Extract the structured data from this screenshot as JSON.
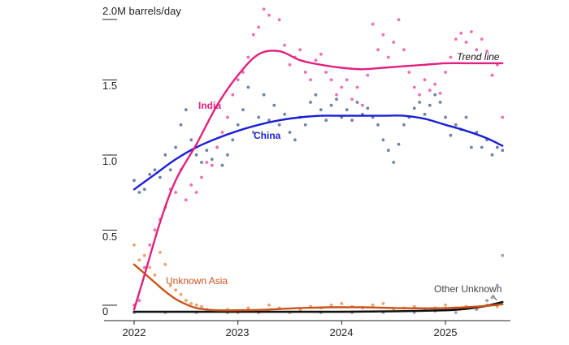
{
  "chart_data": {
    "type": "scatter",
    "title": "",
    "xlabel": "",
    "ylabel": "",
    "y_unit_label": "2.0M barrels/day",
    "ylim": [
      0,
      2.0
    ],
    "y_ticks": [
      {
        "value": 0,
        "label": "0"
      },
      {
        "value": 0.5,
        "label": "0.5"
      },
      {
        "value": 1.0,
        "label": "1.0"
      },
      {
        "value": 1.5,
        "label": "1.5"
      },
      {
        "value": 2.0,
        "label": "2.0M barrels/day"
      }
    ],
    "xlim": [
      2022.0,
      2025.6
    ],
    "x_ticks": [
      {
        "value": 2022,
        "label": "2022"
      },
      {
        "value": 2023,
        "label": "2023"
      },
      {
        "value": 2024,
        "label": "2024"
      },
      {
        "value": 2025,
        "label": "2025"
      }
    ],
    "trend_label": "Trend line",
    "series": [
      {
        "name": "India",
        "color": "#e0217f",
        "dot_color": "#ef6db4",
        "trend": [
          [
            2022.0,
            0.02
          ],
          [
            2022.1,
            0.25
          ],
          [
            2022.25,
            0.6
          ],
          [
            2022.4,
            0.88
          ],
          [
            2022.6,
            1.12
          ],
          [
            2022.8,
            1.38
          ],
          [
            2023.0,
            1.58
          ],
          [
            2023.2,
            1.72
          ],
          [
            2023.4,
            1.74
          ],
          [
            2023.6,
            1.68
          ],
          [
            2023.8,
            1.65
          ],
          [
            2024.0,
            1.63
          ],
          [
            2024.2,
            1.62
          ],
          [
            2024.4,
            1.63
          ],
          [
            2024.6,
            1.64
          ],
          [
            2024.8,
            1.65
          ],
          [
            2025.0,
            1.66
          ],
          [
            2025.2,
            1.66
          ],
          [
            2025.4,
            1.66
          ],
          [
            2025.55,
            1.66
          ]
        ],
        "points": [
          [
            2022.0,
            0.05
          ],
          [
            2022.05,
            0.08
          ],
          [
            2022.1,
            0.3
          ],
          [
            2022.15,
            0.45
          ],
          [
            2022.2,
            0.55
          ],
          [
            2022.25,
            0.62
          ],
          [
            2022.3,
            0.7
          ],
          [
            2022.35,
            0.82
          ],
          [
            2022.4,
            0.8
          ],
          [
            2022.45,
            0.95
          ],
          [
            2022.5,
            0.75
          ],
          [
            2022.55,
            0.85
          ],
          [
            2022.6,
            0.8
          ],
          [
            2022.65,
            0.9
          ],
          [
            2022.7,
            1.0
          ],
          [
            2022.75,
            0.98
          ],
          [
            2022.8,
            1.1
          ],
          [
            2022.85,
            1.2
          ],
          [
            2022.9,
            1.3
          ],
          [
            2022.95,
            1.45
          ],
          [
            2023.0,
            1.55
          ],
          [
            2023.05,
            1.6
          ],
          [
            2023.1,
            1.7
          ],
          [
            2023.15,
            1.85
          ],
          [
            2023.2,
            1.9
          ],
          [
            2023.25,
            2.02
          ],
          [
            2023.3,
            1.98
          ],
          [
            2023.35,
            2.1
          ],
          [
            2023.4,
            1.95
          ],
          [
            2023.45,
            1.78
          ],
          [
            2023.5,
            1.65
          ],
          [
            2023.55,
            1.7
          ],
          [
            2023.6,
            1.75
          ],
          [
            2023.65,
            1.6
          ],
          [
            2023.7,
            1.55
          ],
          [
            2023.75,
            1.68
          ],
          [
            2023.8,
            1.72
          ],
          [
            2023.85,
            1.6
          ],
          [
            2023.9,
            1.55
          ],
          [
            2023.95,
            1.45
          ],
          [
            2024.0,
            1.5
          ],
          [
            2024.05,
            1.55
          ],
          [
            2024.1,
            1.42
          ],
          [
            2024.15,
            1.5
          ],
          [
            2024.2,
            1.38
          ],
          [
            2024.25,
            1.58
          ],
          [
            2024.3,
            1.92
          ],
          [
            2024.35,
            1.75
          ],
          [
            2024.4,
            1.85
          ],
          [
            2024.45,
            1.7
          ],
          [
            2024.5,
            1.8
          ],
          [
            2024.55,
            1.95
          ],
          [
            2024.6,
            1.75
          ],
          [
            2024.65,
            1.6
          ],
          [
            2024.7,
            1.5
          ],
          [
            2024.75,
            1.45
          ],
          [
            2024.8,
            1.55
          ],
          [
            2024.85,
            1.48
          ],
          [
            2024.9,
            1.52
          ],
          [
            2024.95,
            1.46
          ],
          [
            2025.0,
            1.6
          ],
          [
            2025.05,
            1.7
          ],
          [
            2025.1,
            1.82
          ],
          [
            2025.15,
            1.86
          ],
          [
            2025.2,
            1.8
          ],
          [
            2025.25,
            1.87
          ],
          [
            2025.3,
            1.75
          ],
          [
            2025.35,
            1.82
          ],
          [
            2025.4,
            1.74
          ],
          [
            2025.45,
            1.58
          ],
          [
            2025.5,
            1.65
          ],
          [
            2025.55,
            1.3
          ]
        ]
      },
      {
        "name": "China",
        "color": "#1a1fd6",
        "dot_color": "#7080a8",
        "trend": [
          [
            2022.0,
            0.82
          ],
          [
            2022.2,
            0.92
          ],
          [
            2022.4,
            1.02
          ],
          [
            2022.6,
            1.1
          ],
          [
            2022.8,
            1.16
          ],
          [
            2023.0,
            1.21
          ],
          [
            2023.2,
            1.25
          ],
          [
            2023.4,
            1.28
          ],
          [
            2023.6,
            1.3
          ],
          [
            2023.8,
            1.31
          ],
          [
            2024.0,
            1.31
          ],
          [
            2024.2,
            1.31
          ],
          [
            2024.4,
            1.31
          ],
          [
            2024.6,
            1.31
          ],
          [
            2024.8,
            1.29
          ],
          [
            2025.0,
            1.25
          ],
          [
            2025.2,
            1.21
          ],
          [
            2025.4,
            1.16
          ],
          [
            2025.55,
            1.11
          ]
        ],
        "points": [
          [
            2022.0,
            0.88
          ],
          [
            2022.05,
            0.8
          ],
          [
            2022.1,
            0.82
          ],
          [
            2022.15,
            0.92
          ],
          [
            2022.2,
            0.95
          ],
          [
            2022.25,
            0.9
          ],
          [
            2022.3,
            1.05
          ],
          [
            2022.35,
            0.95
          ],
          [
            2022.4,
            1.1
          ],
          [
            2022.45,
            1.25
          ],
          [
            2022.5,
            1.35
          ],
          [
            2022.55,
            1.15
          ],
          [
            2022.6,
            1.05
          ],
          [
            2022.65,
            1.0
          ],
          [
            2022.7,
            1.08
          ],
          [
            2022.75,
            1.02
          ],
          [
            2022.8,
            1.1
          ],
          [
            2022.85,
            0.98
          ],
          [
            2022.9,
            1.05
          ],
          [
            2022.95,
            1.15
          ],
          [
            2023.0,
            1.25
          ],
          [
            2023.05,
            1.35
          ],
          [
            2023.1,
            1.5
          ],
          [
            2023.15,
            1.2
          ],
          [
            2023.2,
            1.3
          ],
          [
            2023.25,
            1.45
          ],
          [
            2023.3,
            1.28
          ],
          [
            2023.35,
            1.38
          ],
          [
            2023.4,
            1.25
          ],
          [
            2023.45,
            1.32
          ],
          [
            2023.5,
            1.2
          ],
          [
            2023.55,
            1.15
          ],
          [
            2023.6,
            1.3
          ],
          [
            2023.65,
            1.25
          ],
          [
            2023.7,
            1.4
          ],
          [
            2023.75,
            1.45
          ],
          [
            2023.8,
            1.35
          ],
          [
            2023.85,
            1.28
          ],
          [
            2023.9,
            1.38
          ],
          [
            2023.95,
            1.42
          ],
          [
            2024.0,
            1.3
          ],
          [
            2024.05,
            1.35
          ],
          [
            2024.1,
            1.28
          ],
          [
            2024.15,
            1.4
          ],
          [
            2024.2,
            1.32
          ],
          [
            2024.25,
            1.36
          ],
          [
            2024.3,
            1.3
          ],
          [
            2024.35,
            1.25
          ],
          [
            2024.4,
            1.15
          ],
          [
            2024.45,
            1.08
          ],
          [
            2024.5,
            1.0
          ],
          [
            2024.55,
            1.12
          ],
          [
            2024.6,
            1.25
          ],
          [
            2024.65,
            1.3
          ],
          [
            2024.7,
            1.36
          ],
          [
            2024.75,
            1.4
          ],
          [
            2024.8,
            1.32
          ],
          [
            2024.85,
            1.38
          ],
          [
            2024.9,
            1.45
          ],
          [
            2024.95,
            1.4
          ],
          [
            2025.0,
            1.3
          ],
          [
            2025.05,
            1.18
          ],
          [
            2025.1,
            1.25
          ],
          [
            2025.15,
            1.22
          ],
          [
            2025.2,
            1.3
          ],
          [
            2025.25,
            1.1
          ],
          [
            2025.3,
            1.2
          ],
          [
            2025.35,
            1.1
          ],
          [
            2025.4,
            1.15
          ],
          [
            2025.45,
            1.05
          ],
          [
            2025.5,
            1.1
          ],
          [
            2025.55,
            1.08
          ]
        ]
      },
      {
        "name": "Unknown Asia",
        "color": "#c8541a",
        "dot_color": "#f0a070",
        "trend": [
          [
            2022.0,
            0.32
          ],
          [
            2022.1,
            0.26
          ],
          [
            2022.2,
            0.2
          ],
          [
            2022.3,
            0.14
          ],
          [
            2022.4,
            0.09
          ],
          [
            2022.5,
            0.055
          ],
          [
            2022.6,
            0.03
          ],
          [
            2022.7,
            0.02
          ],
          [
            2022.8,
            0.015
          ],
          [
            2023.0,
            0.015
          ],
          [
            2023.3,
            0.02
          ],
          [
            2023.6,
            0.03
          ],
          [
            2023.9,
            0.035
          ],
          [
            2024.2,
            0.035
          ],
          [
            2024.5,
            0.03
          ],
          [
            2024.8,
            0.028
          ],
          [
            2025.0,
            0.03
          ],
          [
            2025.2,
            0.035
          ],
          [
            2025.4,
            0.045
          ],
          [
            2025.55,
            0.055
          ]
        ],
        "points": [
          [
            2022.0,
            0.45
          ],
          [
            2022.05,
            0.35
          ],
          [
            2022.1,
            0.38
          ],
          [
            2022.15,
            0.3
          ],
          [
            2022.2,
            0.25
          ],
          [
            2022.25,
            0.4
          ],
          [
            2022.3,
            0.32
          ],
          [
            2022.35,
            0.18
          ],
          [
            2022.4,
            0.15
          ],
          [
            2022.45,
            0.12
          ],
          [
            2022.5,
            0.08
          ],
          [
            2022.55,
            0.06
          ],
          [
            2022.6,
            0.05
          ],
          [
            2022.65,
            0.04
          ],
          [
            2022.7,
            0.02
          ],
          [
            2022.8,
            0.01
          ],
          [
            2022.9,
            0.02
          ],
          [
            2023.0,
            0.0
          ],
          [
            2023.1,
            0.03
          ],
          [
            2023.2,
            0.01
          ],
          [
            2023.3,
            0.05
          ],
          [
            2023.4,
            0.03
          ],
          [
            2023.5,
            0.0
          ],
          [
            2023.6,
            0.02
          ],
          [
            2023.7,
            0.04
          ],
          [
            2023.8,
            0.03
          ],
          [
            2023.9,
            0.05
          ],
          [
            2024.0,
            0.06
          ],
          [
            2024.1,
            0.04
          ],
          [
            2024.2,
            0.03
          ],
          [
            2024.3,
            0.05
          ],
          [
            2024.4,
            0.06
          ],
          [
            2024.5,
            0.02
          ],
          [
            2024.6,
            0.03
          ],
          [
            2024.7,
            0.04
          ],
          [
            2024.8,
            0.02
          ],
          [
            2024.9,
            0.03
          ],
          [
            2025.0,
            0.05
          ],
          [
            2025.1,
            0.03
          ],
          [
            2025.2,
            0.04
          ],
          [
            2025.3,
            0.03
          ],
          [
            2025.4,
            0.05
          ],
          [
            2025.5,
            0.04
          ]
        ]
      },
      {
        "name": "Other Unknown",
        "color": "#111111",
        "dot_color": "#9aa0b8",
        "trend": [
          [
            2022.0,
            0.005
          ],
          [
            2022.5,
            0.005
          ],
          [
            2023.0,
            0.005
          ],
          [
            2023.5,
            0.005
          ],
          [
            2024.0,
            0.005
          ],
          [
            2024.5,
            0.008
          ],
          [
            2025.0,
            0.015
          ],
          [
            2025.2,
            0.025
          ],
          [
            2025.4,
            0.045
          ],
          [
            2025.55,
            0.07
          ]
        ],
        "points": [
          [
            2022.0,
            0.0
          ],
          [
            2022.3,
            0.0
          ],
          [
            2022.6,
            0.0
          ],
          [
            2022.9,
            0.0
          ],
          [
            2023.2,
            0.0
          ],
          [
            2023.5,
            0.0
          ],
          [
            2023.8,
            0.0
          ],
          [
            2024.1,
            0.0
          ],
          [
            2024.4,
            0.0
          ],
          [
            2024.7,
            0.0
          ],
          [
            2024.9,
            0.01
          ],
          [
            2025.0,
            0.02
          ],
          [
            2025.1,
            0.0
          ],
          [
            2025.2,
            0.03
          ],
          [
            2025.3,
            0.02
          ],
          [
            2025.4,
            0.08
          ],
          [
            2025.45,
            0.1
          ],
          [
            2025.5,
            0.18
          ],
          [
            2025.55,
            0.38
          ]
        ]
      }
    ]
  }
}
